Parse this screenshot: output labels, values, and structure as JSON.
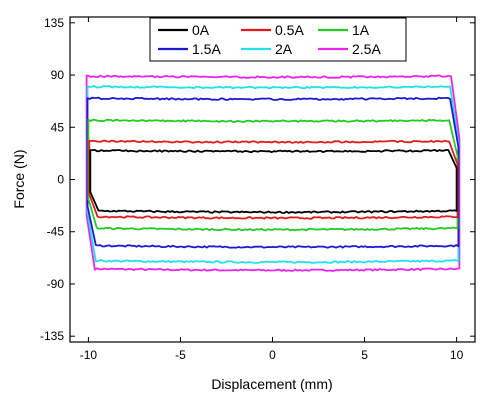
{
  "chart_data": {
    "type": "line",
    "xlabel": "Displacement (mm)",
    "ylabel": "Force (N)",
    "xlim": [
      -11,
      11
    ],
    "ylim": [
      -140,
      140
    ],
    "xticks": [
      -10,
      -5,
      0,
      5,
      10
    ],
    "yticks": [
      -135,
      -90,
      -45,
      0,
      45,
      90,
      135
    ],
    "grid": false,
    "legend_position": "top-center",
    "legend_columns": 3,
    "series": [
      {
        "name": "0A",
        "color": "#000000",
        "upper": 25,
        "lower": -27,
        "x_min": -9.9,
        "x_max": 10.0
      },
      {
        "name": "0.5A",
        "color": "#e41a1c",
        "upper": 33,
        "lower": -32,
        "x_min": -9.95,
        "x_max": 10.05
      },
      {
        "name": "1A",
        "color": "#22cc22",
        "upper": 51,
        "lower": -42,
        "x_min": -10.0,
        "x_max": 10.05
      },
      {
        "name": "1.5A",
        "color": "#1a1ad4",
        "upper": 70,
        "lower": -57,
        "x_min": -10.05,
        "x_max": 10.1
      },
      {
        "name": "2A",
        "color": "#22e0f0",
        "upper": 80,
        "lower": -70,
        "x_min": -10.05,
        "x_max": 10.1
      },
      {
        "name": "2.5A",
        "color": "#ee22ee",
        "upper": 89,
        "lower": -77,
        "x_min": -10.1,
        "x_max": 10.15
      }
    ]
  }
}
